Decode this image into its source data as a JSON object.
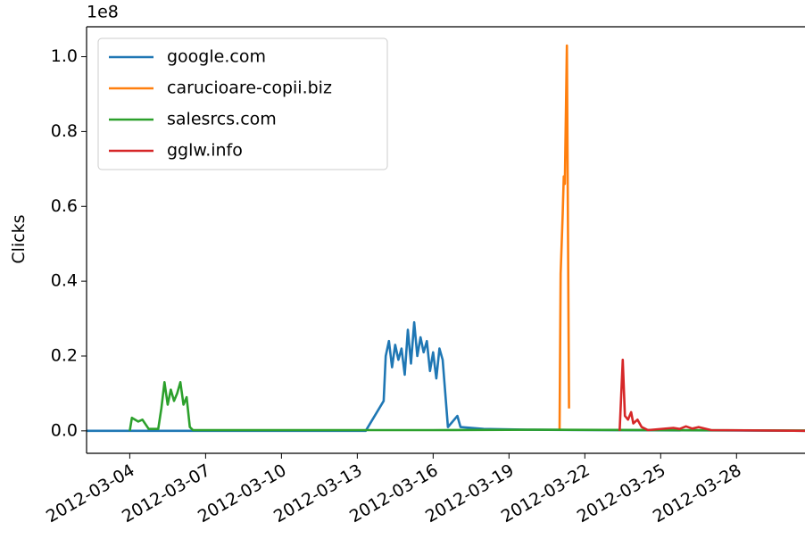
{
  "chart_data": {
    "type": "line",
    "y_label": "Clicks",
    "y_offset_label": "1e8",
    "xlim": [
      "2012-03-02 07:00",
      "2012-03-30 17:00"
    ],
    "xticks": [
      "2012-03-04",
      "2012-03-07",
      "2012-03-10",
      "2012-03-13",
      "2012-03-16",
      "2012-03-19",
      "2012-03-22",
      "2012-03-25",
      "2012-03-28"
    ],
    "ylim": [
      -0.06,
      1.08
    ],
    "yticks": [
      {
        "value": 0,
        "label": "0.0"
      },
      0.2,
      0.4,
      0.6,
      0.8,
      {
        "value": 1,
        "label": "1.0"
      }
    ],
    "grid": false,
    "legend": "upper left",
    "series": [
      {
        "name": "google.com",
        "color": "#1f77b4",
        "x": [
          "2012-03-02 07:00",
          "2012-03-13 08:00",
          "2012-03-14 01:00",
          "2012-03-14 03:00",
          "2012-03-14 06:00",
          "2012-03-14 09:00",
          "2012-03-14 12:00",
          "2012-03-14 15:00",
          "2012-03-14 18:00",
          "2012-03-14 21:00",
          "2012-03-15 00:00",
          "2012-03-15 03:00",
          "2012-03-15 06:00",
          "2012-03-15 09:00",
          "2012-03-15 12:00",
          "2012-03-15 15:00",
          "2012-03-15 18:00",
          "2012-03-15 21:00",
          "2012-03-16 00:00",
          "2012-03-16 03:00",
          "2012-03-16 06:00",
          "2012-03-16 09:00",
          "2012-03-16 14:00",
          "2012-03-16 23:00",
          "2012-03-17 02:00",
          "2012-03-18 00:00",
          "2012-03-19 17:00",
          "2012-03-30 17:00"
        ],
        "values": [
          0,
          0,
          0.08,
          0.2,
          0.24,
          0.17,
          0.23,
          0.19,
          0.22,
          0.15,
          0.27,
          0.18,
          0.29,
          0.2,
          0.25,
          0.21,
          0.24,
          0.16,
          0.21,
          0.14,
          0.22,
          0.19,
          0.01,
          0.04,
          0.01,
          0.005,
          0.003,
          0
        ]
      },
      {
        "name": "carucioare-copii.biz",
        "color": "#ff7f0e",
        "x": [
          "2012-03-21 00:00",
          "2012-03-21 01:00",
          "2012-03-21 03:00",
          "2012-03-21 04:00",
          "2012-03-21 05:00",
          "2012-03-21 07:00",
          "2012-03-21 09:00"
        ],
        "values": [
          0.005,
          0.42,
          0.58,
          0.68,
          0.66,
          1.03,
          0.06
        ]
      },
      {
        "name": "salesrcs.com",
        "color": "#2ca02c",
        "x": [
          "2012-03-04 00:00",
          "2012-03-04 02:00",
          "2012-03-04 08:00",
          "2012-03-04 12:00",
          "2012-03-04 18:00",
          "2012-03-05 03:00",
          "2012-03-05 06:00",
          "2012-03-05 09:00",
          "2012-03-05 12:00",
          "2012-03-05 15:00",
          "2012-03-05 18:00",
          "2012-03-05 21:00",
          "2012-03-06 00:00",
          "2012-03-06 03:00",
          "2012-03-06 06:00",
          "2012-03-06 09:00",
          "2012-03-06 12:00",
          "2012-03-16 00:00",
          "2012-03-20 00:00",
          "2012-03-30 17:00"
        ],
        "values": [
          0,
          0.035,
          0.025,
          0.03,
          0.005,
          0.005,
          0.06,
          0.13,
          0.07,
          0.11,
          0.08,
          0.1,
          0.13,
          0.07,
          0.09,
          0.01,
          0.002,
          0.002,
          0.003,
          0.001
        ]
      },
      {
        "name": "gglw.info",
        "color": "#d62728",
        "x": [
          "2012-03-23 09:00",
          "2012-03-23 12:00",
          "2012-03-23 14:00",
          "2012-03-23 17:00",
          "2012-03-23 20:00",
          "2012-03-23 22:00",
          "2012-03-24 02:00",
          "2012-03-24 06:00",
          "2012-03-24 12:00",
          "2012-03-25 12:00",
          "2012-03-25 18:00",
          "2012-03-26 00:00",
          "2012-03-26 06:00",
          "2012-03-26 12:00",
          "2012-03-27 00:00",
          "2012-03-30 17:00"
        ],
        "values": [
          0,
          0.19,
          0.04,
          0.03,
          0.05,
          0.02,
          0.03,
          0.01,
          0.002,
          0.008,
          0.005,
          0.012,
          0.006,
          0.01,
          0.002,
          0
        ]
      }
    ]
  }
}
